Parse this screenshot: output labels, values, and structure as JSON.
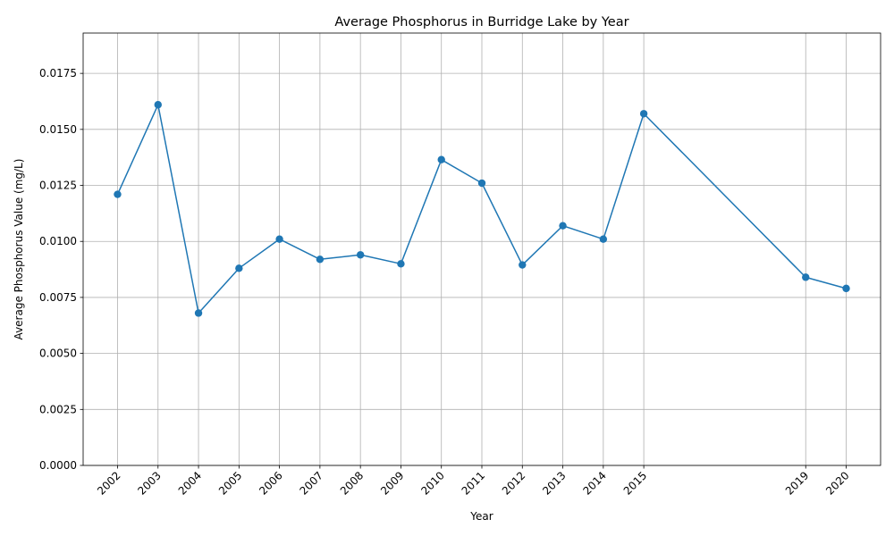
{
  "chart_data": {
    "type": "line",
    "title": "Average Phosphorus in Burridge Lake by Year",
    "xlabel": "Year",
    "ylabel": "Average Phosphorus Value (mg/L)",
    "x": [
      2002,
      2003,
      2004,
      2005,
      2006,
      2007,
      2008,
      2009,
      2010,
      2011,
      2012,
      2013,
      2014,
      2015,
      2019,
      2020
    ],
    "series": [
      {
        "values": [
          0.0121,
          0.0161,
          0.0068,
          0.0088,
          0.0101,
          0.0092,
          0.0094,
          0.009,
          0.01365,
          0.0126,
          0.00895,
          0.0107,
          0.0101,
          0.0157,
          0.0084,
          0.0079
        ],
        "color": "#1f77b4",
        "marker": "circle"
      }
    ],
    "xlim": [
      2001.15,
      2020.85
    ],
    "ylim": [
      0,
      0.0193
    ],
    "yticks": [
      "0.0000",
      "0.0025",
      "0.0050",
      "0.0075",
      "0.0100",
      "0.0125",
      "0.0150",
      "0.0175"
    ],
    "xticks": [
      "2002",
      "2003",
      "2004",
      "2005",
      "2006",
      "2007",
      "2008",
      "2009",
      "2010",
      "2011",
      "2012",
      "2013",
      "2014",
      "2015",
      "2019",
      "2020"
    ],
    "grid": true,
    "legend": "none"
  }
}
